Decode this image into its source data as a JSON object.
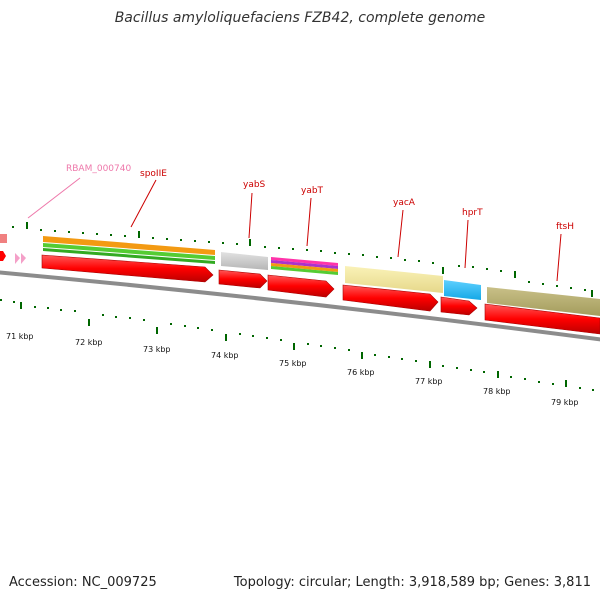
{
  "title": "Bacillus amyloliquefaciens FZB42, complete genome",
  "footer": {
    "accession": "Accession: NC_009725",
    "summary": "Topology: circular; Length: 3,918,589 bp; Genes: 3,811"
  },
  "colors": {
    "gene_label": "#cc0000",
    "pseudo_label": "#ee77aa",
    "gene_arrow": "#ff0000",
    "tick": "#006600",
    "backbone": "#999999"
  },
  "scale_labels": [
    "71 kbp",
    "72 kbp",
    "73 kbp",
    "74 kbp",
    "75 kbp",
    "76 kbp",
    "77 kbp",
    "78 kbp",
    "79 kbp"
  ],
  "genes": [
    {
      "name": "RBAM_000740",
      "color": "#ee77aa"
    },
    {
      "name": "spoIIE",
      "color": "#cc0000"
    },
    {
      "name": "yabS",
      "color": "#cc0000"
    },
    {
      "name": "yabT",
      "color": "#cc0000"
    },
    {
      "name": "yacA",
      "color": "#cc0000"
    },
    {
      "name": "hprT",
      "color": "#cc0000"
    },
    {
      "name": "ftsH",
      "color": "#cc0000"
    }
  ]
}
